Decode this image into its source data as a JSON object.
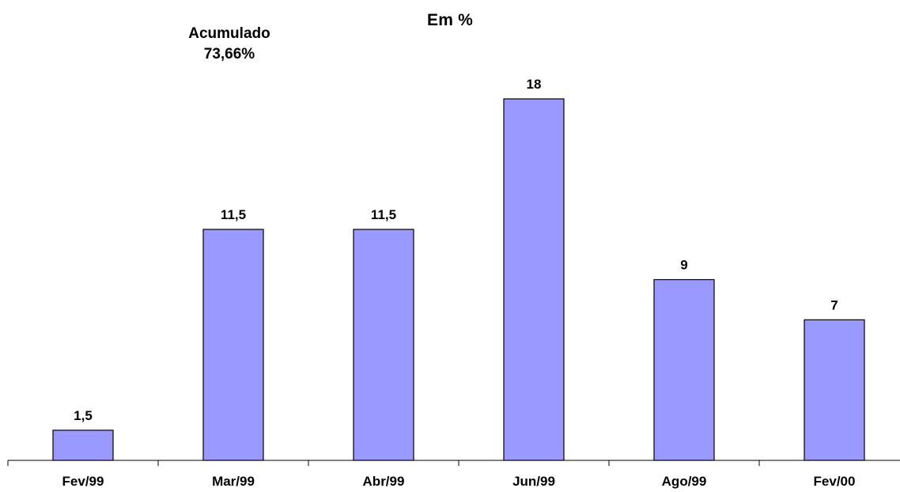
{
  "colors": {
    "bar_fill": "#9999ff",
    "bar_stroke": "#000000",
    "axis": "#000000",
    "text": "#000000",
    "background": "#ffffff"
  },
  "chart_data": {
    "type": "bar",
    "title": "Em %",
    "annotation": {
      "line1": "Acumulado",
      "line2": "73,66%"
    },
    "categories": [
      "Fev/99",
      "Mar/99",
      "Abr/99",
      "Jun/99",
      "Ago/99",
      "Fev/00"
    ],
    "values": [
      1.5,
      11.5,
      11.5,
      18,
      9,
      7
    ],
    "data_labels": [
      "1,5",
      "11,5",
      "11,5",
      "18",
      "9",
      "7"
    ],
    "xlabel": "",
    "ylabel": "",
    "ylim": [
      0,
      18
    ],
    "grid": false,
    "legend": "none"
  }
}
